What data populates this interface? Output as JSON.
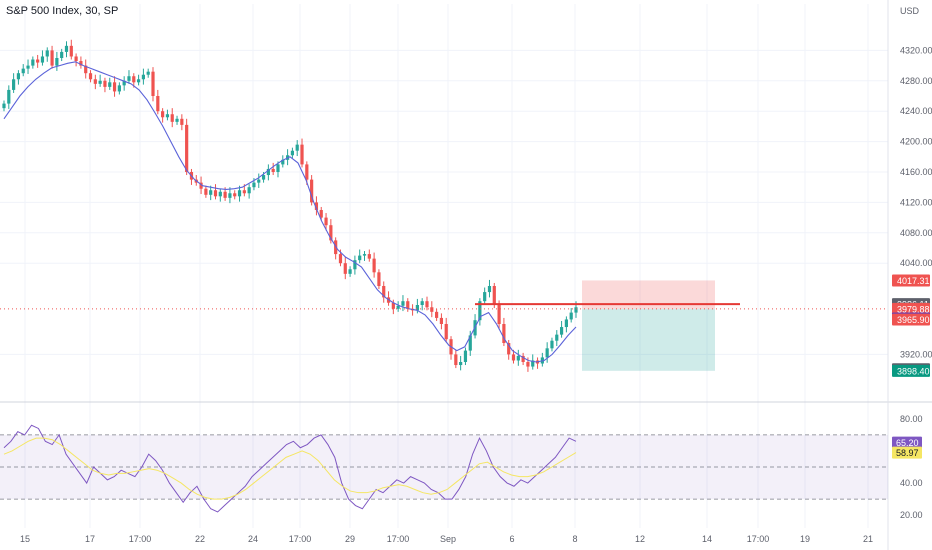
{
  "header": {
    "title": "S&P 500 Index, 30, SP",
    "currency": "USD"
  },
  "colors": {
    "up": "#26a69a",
    "down": "#ef5350",
    "ma": "#5b63d9",
    "rsi": "#7e57c2",
    "rsi_ma": "#f5e663",
    "grid": "#f0f3fa",
    "text": "#131722",
    "axis_text": "#5d606b"
  },
  "chart_data": [
    {
      "type": "candlestick",
      "title": "S&P 500 Index, 30, SP",
      "ylim": [
        3860,
        4360
      ],
      "y_ticks": [
        4320,
        4280,
        4240,
        4200,
        4160,
        4120,
        4080,
        4040,
        3920
      ],
      "x_ticks": [
        "15",
        "17",
        "17:00",
        "22",
        "24",
        "17:00",
        "29",
        "17:00",
        "Sep",
        "6",
        "8",
        "12",
        "14",
        "17:00",
        "19",
        "21"
      ],
      "approx_closes": [
        4250,
        4268,
        4282,
        4290,
        4296,
        4300,
        4308,
        4304,
        4312,
        4320,
        4300,
        4310,
        4318,
        4326,
        4312,
        4306,
        4300,
        4290,
        4282,
        4276,
        4280,
        4272,
        4278,
        4266,
        4274,
        4280,
        4286,
        4278,
        4282,
        4288,
        4292,
        4260,
        4240,
        4232,
        4236,
        4226,
        4230,
        4222,
        4160,
        4150,
        4146,
        4138,
        4130,
        4136,
        4128,
        4134,
        4126,
        4132,
        4128,
        4136,
        4132,
        4140,
        4146,
        4150,
        4156,
        4164,
        4160,
        4170,
        4176,
        4182,
        4188,
        4196,
        4170,
        4150,
        4120,
        4110,
        4100,
        4090,
        4070,
        4052,
        4040,
        4026,
        4032,
        4044,
        4050,
        4052,
        4046,
        4028,
        4010,
        3995,
        3988,
        3980,
        3984,
        3990,
        3980,
        3978,
        3985,
        3990,
        3982,
        3976,
        3968,
        3960,
        3940,
        3920,
        3906,
        3910,
        3925,
        3945,
        3965,
        3990,
        4002,
        4010,
        3985,
        3960,
        3935,
        3920,
        3912,
        3918,
        3910,
        3904,
        3912,
        3908,
        3916,
        3928,
        3938,
        3946,
        3956,
        3966,
        3975,
        3982
      ],
      "moving_average_approx": [
        4230,
        4245,
        4260,
        4272,
        4282,
        4290,
        4297,
        4300,
        4303,
        4305,
        4300,
        4296,
        4292,
        4288,
        4284,
        4280,
        4276,
        4268,
        4255,
        4238,
        4220,
        4200,
        4180,
        4162,
        4150,
        4142,
        4140,
        4138,
        4137,
        4138,
        4140,
        4146,
        4152,
        4160,
        4168,
        4175,
        4180,
        4172,
        4150,
        4120,
        4095,
        4075,
        4058,
        4048,
        4042,
        4035,
        4020,
        4005,
        3995,
        3988,
        3983,
        3980,
        3978,
        3972,
        3960,
        3945,
        3932,
        3925,
        3930,
        3950,
        3970,
        3975,
        3960,
        3940,
        3925,
        3918,
        3912,
        3910,
        3912,
        3920,
        3932,
        3945,
        3956
      ],
      "horizontal_level": 3979.88,
      "position": {
        "entry": 3979.88,
        "stop": 4017.31,
        "target": 3898.4
      },
      "price_labels": [
        {
          "value": 4017.31,
          "text": "4017.31",
          "color": "#ef5350"
        },
        {
          "value": 3986.11,
          "text": "3986.11",
          "color": "#5d606b"
        },
        {
          "value": 3979.88,
          "text": "3979.88",
          "color": "#ef5350"
        },
        {
          "value": 3967.02,
          "text": "3967.02",
          "color": "#3b3bd6"
        },
        {
          "value": 3965.9,
          "text": "3965.90",
          "color": "#ef5350"
        },
        {
          "value": 3900.45,
          "text": "3900.45",
          "color": "#5d606b"
        },
        {
          "value": 3898.4,
          "text": "3898.40",
          "color": "#089981"
        }
      ]
    },
    {
      "type": "line",
      "title": "RSI",
      "ylim": [
        12,
        88
      ],
      "y_ticks": [
        80.0,
        40.0,
        20.0
      ],
      "y_tick_labels": [
        "80.00",
        "40.00",
        "20.00"
      ],
      "bands": [
        70,
        50,
        30
      ],
      "rsi_approx": [
        62,
        66,
        72,
        70,
        76,
        74,
        66,
        64,
        70,
        58,
        52,
        46,
        40,
        50,
        46,
        42,
        44,
        48,
        46,
        44,
        50,
        58,
        54,
        48,
        40,
        34,
        28,
        34,
        38,
        30,
        24,
        22,
        26,
        30,
        34,
        38,
        44,
        48,
        52,
        56,
        60,
        64,
        66,
        62,
        64,
        68,
        70,
        64,
        56,
        40,
        30,
        26,
        24,
        30,
        36,
        34,
        38,
        42,
        40,
        44,
        42,
        40,
        36,
        34,
        30,
        30,
        36,
        44,
        58,
        68,
        60,
        50,
        44,
        40,
        38,
        42,
        40,
        44,
        48,
        52,
        56,
        62,
        68,
        66
      ],
      "rsi_ma_approx": [
        58,
        60,
        63,
        66,
        68,
        68,
        67,
        64,
        60,
        56,
        52,
        48,
        46,
        45,
        46,
        46,
        47,
        48,
        49,
        48,
        46,
        43,
        40,
        36,
        33,
        31,
        30,
        30,
        31,
        33,
        36,
        40,
        44,
        48,
        52,
        56,
        58,
        60,
        58,
        54,
        48,
        42,
        38,
        35,
        34,
        34,
        35,
        37,
        38,
        39,
        38,
        36,
        34,
        33,
        34,
        36,
        40,
        44,
        48,
        52,
        53,
        50,
        47,
        45,
        44,
        44,
        45,
        47,
        50,
        53,
        56,
        59
      ],
      "value_labels": [
        {
          "value": 65.2,
          "text": "65.20",
          "color": "#7e57c2"
        },
        {
          "value": 58.97,
          "text": "58.97",
          "color": "#f5e663"
        }
      ]
    }
  ]
}
